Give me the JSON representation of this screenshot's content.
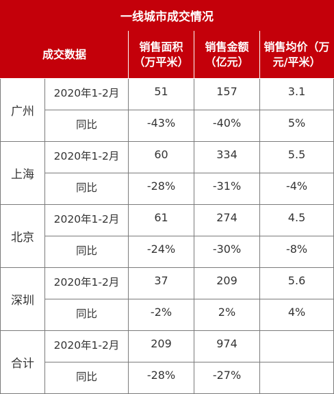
{
  "title": "一线城市成交情况",
  "headers": {
    "col1": "成交数据",
    "col2": "销售面积（万平米）",
    "col3": "销售金额（亿元）",
    "col4": "销售均价（万元/平米）"
  },
  "rows": [
    {
      "city": "广州",
      "period_label": "2020年1-2月",
      "area": "51",
      "amount": "157",
      "price": "3.1",
      "yoy_label": "同比",
      "area_yoy": "-43%",
      "amount_yoy": "-40%",
      "price_yoy": "5%"
    },
    {
      "city": "上海",
      "period_label": "2020年1-2月",
      "area": "60",
      "amount": "334",
      "price": "5.5",
      "yoy_label": "同比",
      "area_yoy": "-28%",
      "amount_yoy": "-31%",
      "price_yoy": "-4%"
    },
    {
      "city": "北京",
      "period_label": "2020年1-2月",
      "area": "61",
      "amount": "274",
      "price": "4.5",
      "yoy_label": "同比",
      "area_yoy": "-24%",
      "amount_yoy": "-30%",
      "price_yoy": "-8%"
    },
    {
      "city": "深圳",
      "period_label": "2020年1-2月",
      "area": "37",
      "amount": "209",
      "price": "5.6",
      "yoy_label": "同比",
      "area_yoy": "-2%",
      "amount_yoy": "2%",
      "price_yoy": "4%"
    },
    {
      "city": "合计",
      "period_label": "2020年1-2月",
      "area": "209",
      "amount": "974",
      "price": "",
      "yoy_label": "同比",
      "area_yoy": "-28%",
      "amount_yoy": "-27%",
      "price_yoy": ""
    }
  ]
}
